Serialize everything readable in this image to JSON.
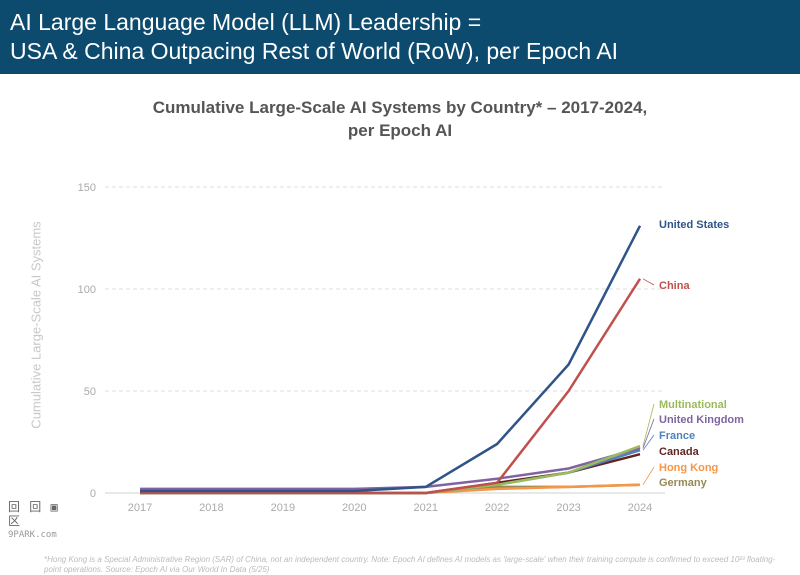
{
  "header": {
    "line1": "AI Large Language Model (LLM) Leadership =",
    "line2": "USA & China Outpacing Rest of World (RoW), per Epoch AI"
  },
  "chart_data": {
    "type": "line",
    "title_line1": "Cumulative Large-Scale AI Systems by Country* – 2017-2024,",
    "title_line2": "per Epoch AI",
    "xlabel": "",
    "ylabel": "Cumulative Large-Scale AI Systems",
    "x": [
      "2017",
      "2018",
      "2019",
      "2020",
      "2021",
      "2022",
      "2023",
      "2024"
    ],
    "y_ticks": [
      0,
      50,
      100,
      150
    ],
    "ylim": [
      0,
      150
    ],
    "grid": true,
    "series": [
      {
        "name": "United States",
        "color": "#2f5487",
        "values": [
          1,
          1,
          1,
          1,
          3,
          24,
          63,
          131
        ]
      },
      {
        "name": "China",
        "color": "#c0504d",
        "values": [
          0,
          0,
          0,
          0,
          0,
          5,
          50,
          105
        ]
      },
      {
        "name": "Multinational",
        "color": "#9bbb59",
        "values": [
          0,
          0,
          0,
          0,
          0,
          4,
          10,
          23
        ]
      },
      {
        "name": "United Kingdom",
        "color": "#8064a2",
        "values": [
          2,
          2,
          2,
          2,
          3,
          7,
          12,
          22
        ]
      },
      {
        "name": "France",
        "color": "#4f81bd",
        "values": [
          0,
          0,
          0,
          0,
          0,
          4,
          10,
          21
        ]
      },
      {
        "name": "Canada",
        "color": "#632523",
        "values": [
          0,
          0,
          0,
          0,
          0,
          5,
          10,
          19
        ]
      },
      {
        "name": "Hong Kong",
        "color": "#f79646",
        "values": [
          0,
          0,
          0,
          0,
          0,
          2,
          3,
          4
        ]
      },
      {
        "name": "Germany",
        "color": "#948a54",
        "values": [
          0,
          0,
          0,
          0,
          0,
          3,
          3,
          4
        ]
      }
    ]
  },
  "watermark": {
    "glyphs": "回 回 ▣ 区",
    "text": "9PARK.com"
  },
  "footnote": "*Hong Kong is a Special Administrative Region (SAR) of China, not an independent country. Note: Epoch AI defines AI models as 'large-scale' when their training compute is confirmed to exceed 10²³ floating-point operations. Source: Epoch AI via Our World In Data (5/25)"
}
